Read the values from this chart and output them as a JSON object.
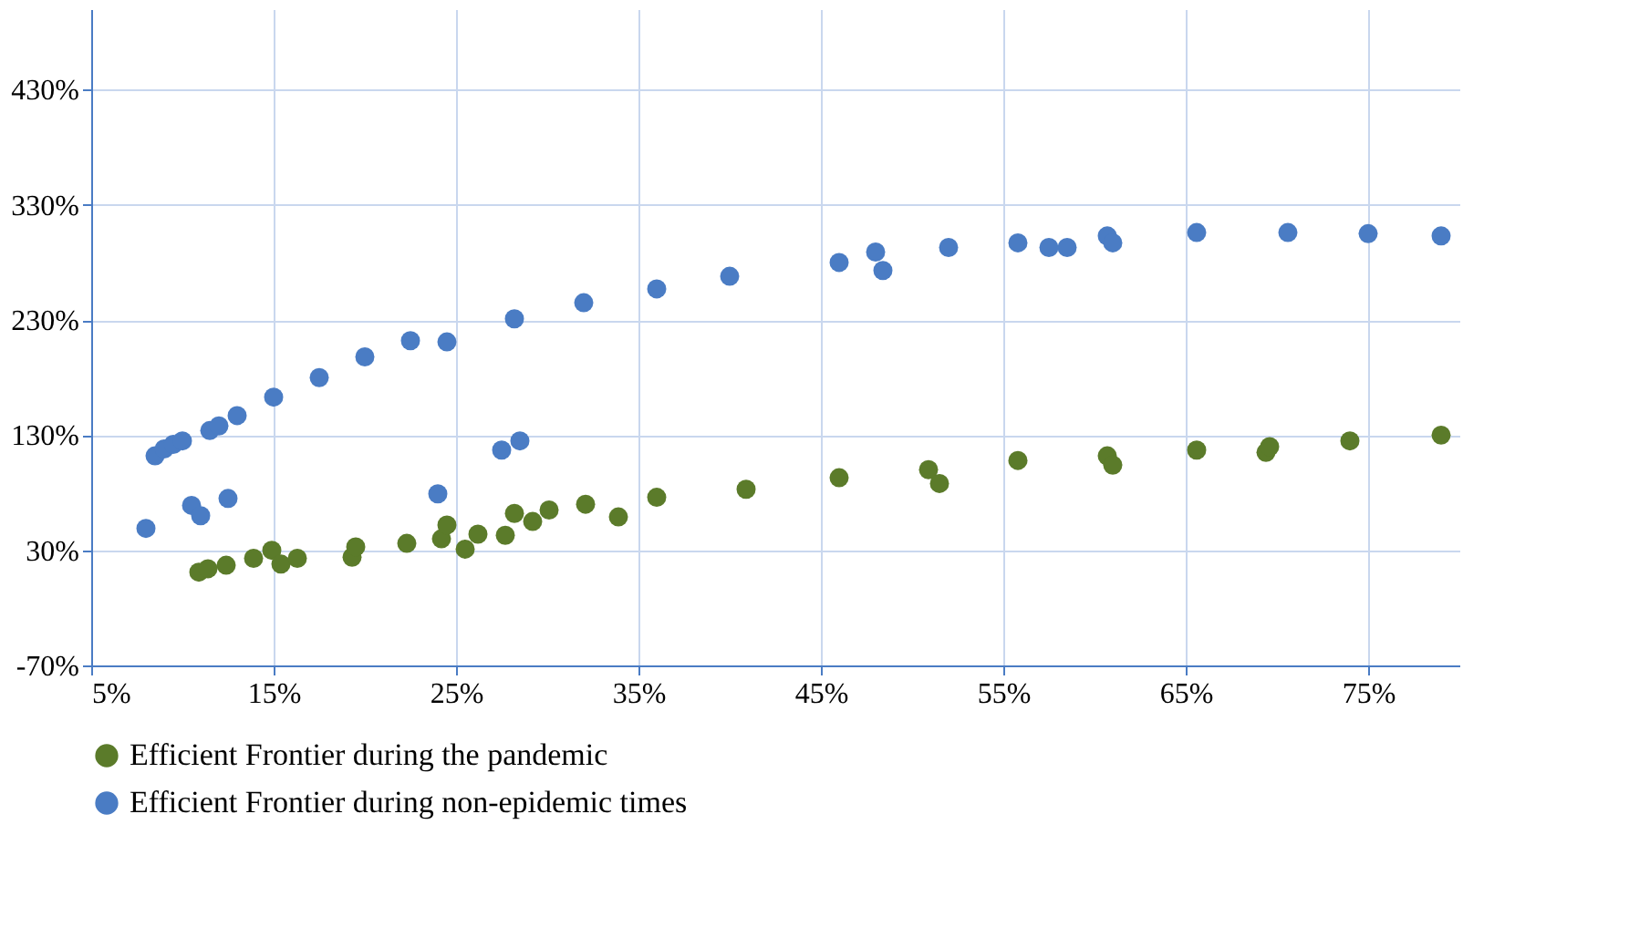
{
  "chart_data": {
    "type": "scatter",
    "legend": "bottom",
    "grid": true,
    "marker": "circle",
    "xlim": [
      5,
      80
    ],
    "ylim": [
      -70,
      500
    ],
    "xticks": [
      {
        "value": 5,
        "label": "5%"
      },
      {
        "value": 15,
        "label": "15%"
      },
      {
        "value": 25,
        "label": "25%"
      },
      {
        "value": 35,
        "label": "35%"
      },
      {
        "value": 45,
        "label": "45%"
      },
      {
        "value": 55,
        "label": "55%"
      },
      {
        "value": 65,
        "label": "65%"
      },
      {
        "value": 75,
        "label": "75%"
      }
    ],
    "yticks": [
      {
        "value": -70,
        "label": "-70%"
      },
      {
        "value": 30,
        "label": "30%"
      },
      {
        "value": 130,
        "label": "130%"
      },
      {
        "value": 230,
        "label": "230%"
      },
      {
        "value": 330,
        "label": "330%"
      },
      {
        "value": 430,
        "label": "430%"
      }
    ],
    "series": [
      {
        "name": "Efficient Frontier during the pandemic",
        "color": "#5b7b2a",
        "x": [
          10.9,
          11.4,
          12.4,
          13.9,
          14.9,
          15.4,
          16.3,
          19.3,
          19.5,
          22.3,
          24.2,
          24.5,
          25.5,
          26.2,
          27.7,
          28.2,
          29.2,
          30.1,
          32.1,
          33.9,
          36,
          40.9,
          46,
          50.9,
          51.5,
          55.8,
          60.7,
          61,
          65.6,
          69.4,
          69.6,
          74,
          79
        ],
        "values": [
          11,
          14,
          17,
          23,
          30,
          18,
          23,
          24,
          33,
          36,
          40,
          52,
          31,
          44,
          43,
          62,
          55,
          65,
          70,
          59,
          76,
          83,
          93,
          100,
          88,
          108,
          112,
          104,
          117,
          115,
          120,
          125,
          130
        ]
      },
      {
        "name": "Efficient Frontier during non-epidemic times",
        "color": "#4a7cc4",
        "x": [
          8,
          8.5,
          9,
          9.5,
          10,
          10.5,
          11,
          11.5,
          12,
          12.5,
          13,
          15,
          17.5,
          20,
          22.5,
          24,
          24.5,
          27.5,
          28.2,
          28.5,
          32,
          36,
          40,
          46,
          48,
          48.4,
          52,
          55.8,
          57.5,
          58.5,
          60.7,
          61,
          65.6,
          70.6,
          75,
          79
        ],
        "values": [
          49,
          112,
          118,
          122,
          125,
          69,
          60,
          134,
          138,
          75,
          147,
          163,
          180,
          198,
          212,
          79,
          211,
          117,
          231,
          125,
          245,
          257,
          268,
          280,
          289,
          273,
          293,
          297,
          293,
          293,
          303,
          297,
          306,
          306,
          305,
          303
        ]
      }
    ]
  }
}
